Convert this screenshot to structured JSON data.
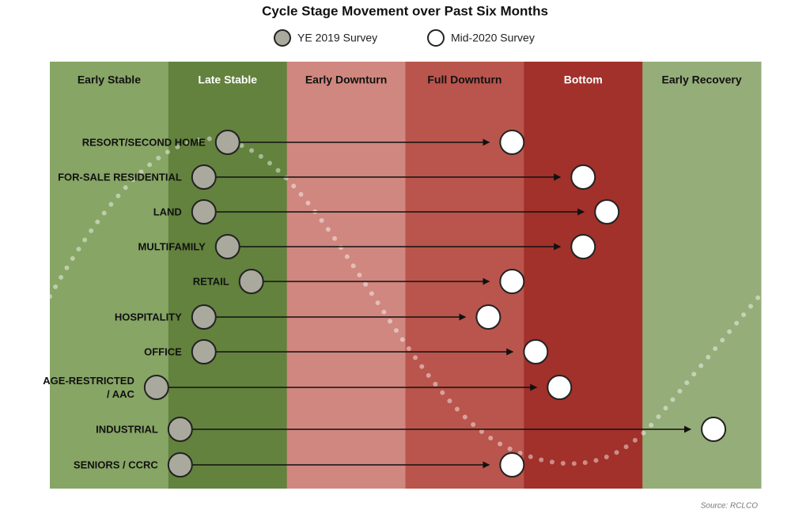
{
  "chart_data": {
    "type": "dumbbell",
    "title": "Cycle Stage Movement over Past Six Months",
    "stages": [
      {
        "name": "Early Stable",
        "color": "#87a565"
      },
      {
        "name": "Late Stable",
        "color": "#62823d"
      },
      {
        "name": "Early Downturn",
        "color": "#cf877f"
      },
      {
        "name": "Full Downturn",
        "color": "#b9554c"
      },
      {
        "name": "Bottom",
        "color": "#a1312a"
      },
      {
        "name": "Early Recovery",
        "color": "#95ad79"
      }
    ],
    "xlim": [
      0,
      6
    ],
    "categories": [
      "RESORT/SECOND HOME",
      "FOR-SALE RESIDENTIAL",
      "LAND",
      "MULTIFAMILY",
      "RETAIL",
      "HOSPITALITY",
      "OFFICE",
      "AGE-RESTRICTED\n/ AAC",
      "INDUSTRIAL",
      "SENIORS / CCRC"
    ],
    "series": [
      {
        "name": "YE 2019 Survey",
        "color": "#a9a99d",
        "values": [
          1.5,
          1.3,
          1.3,
          1.5,
          1.7,
          1.3,
          1.3,
          0.9,
          1.1,
          1.1
        ]
      },
      {
        "name": "Mid-2020 Survey",
        "color": "#ffffff",
        "values": [
          3.9,
          4.5,
          4.7,
          4.5,
          3.9,
          3.7,
          4.1,
          4.3,
          5.6,
          3.9
        ]
      }
    ],
    "source": "Source: RCLCO"
  }
}
